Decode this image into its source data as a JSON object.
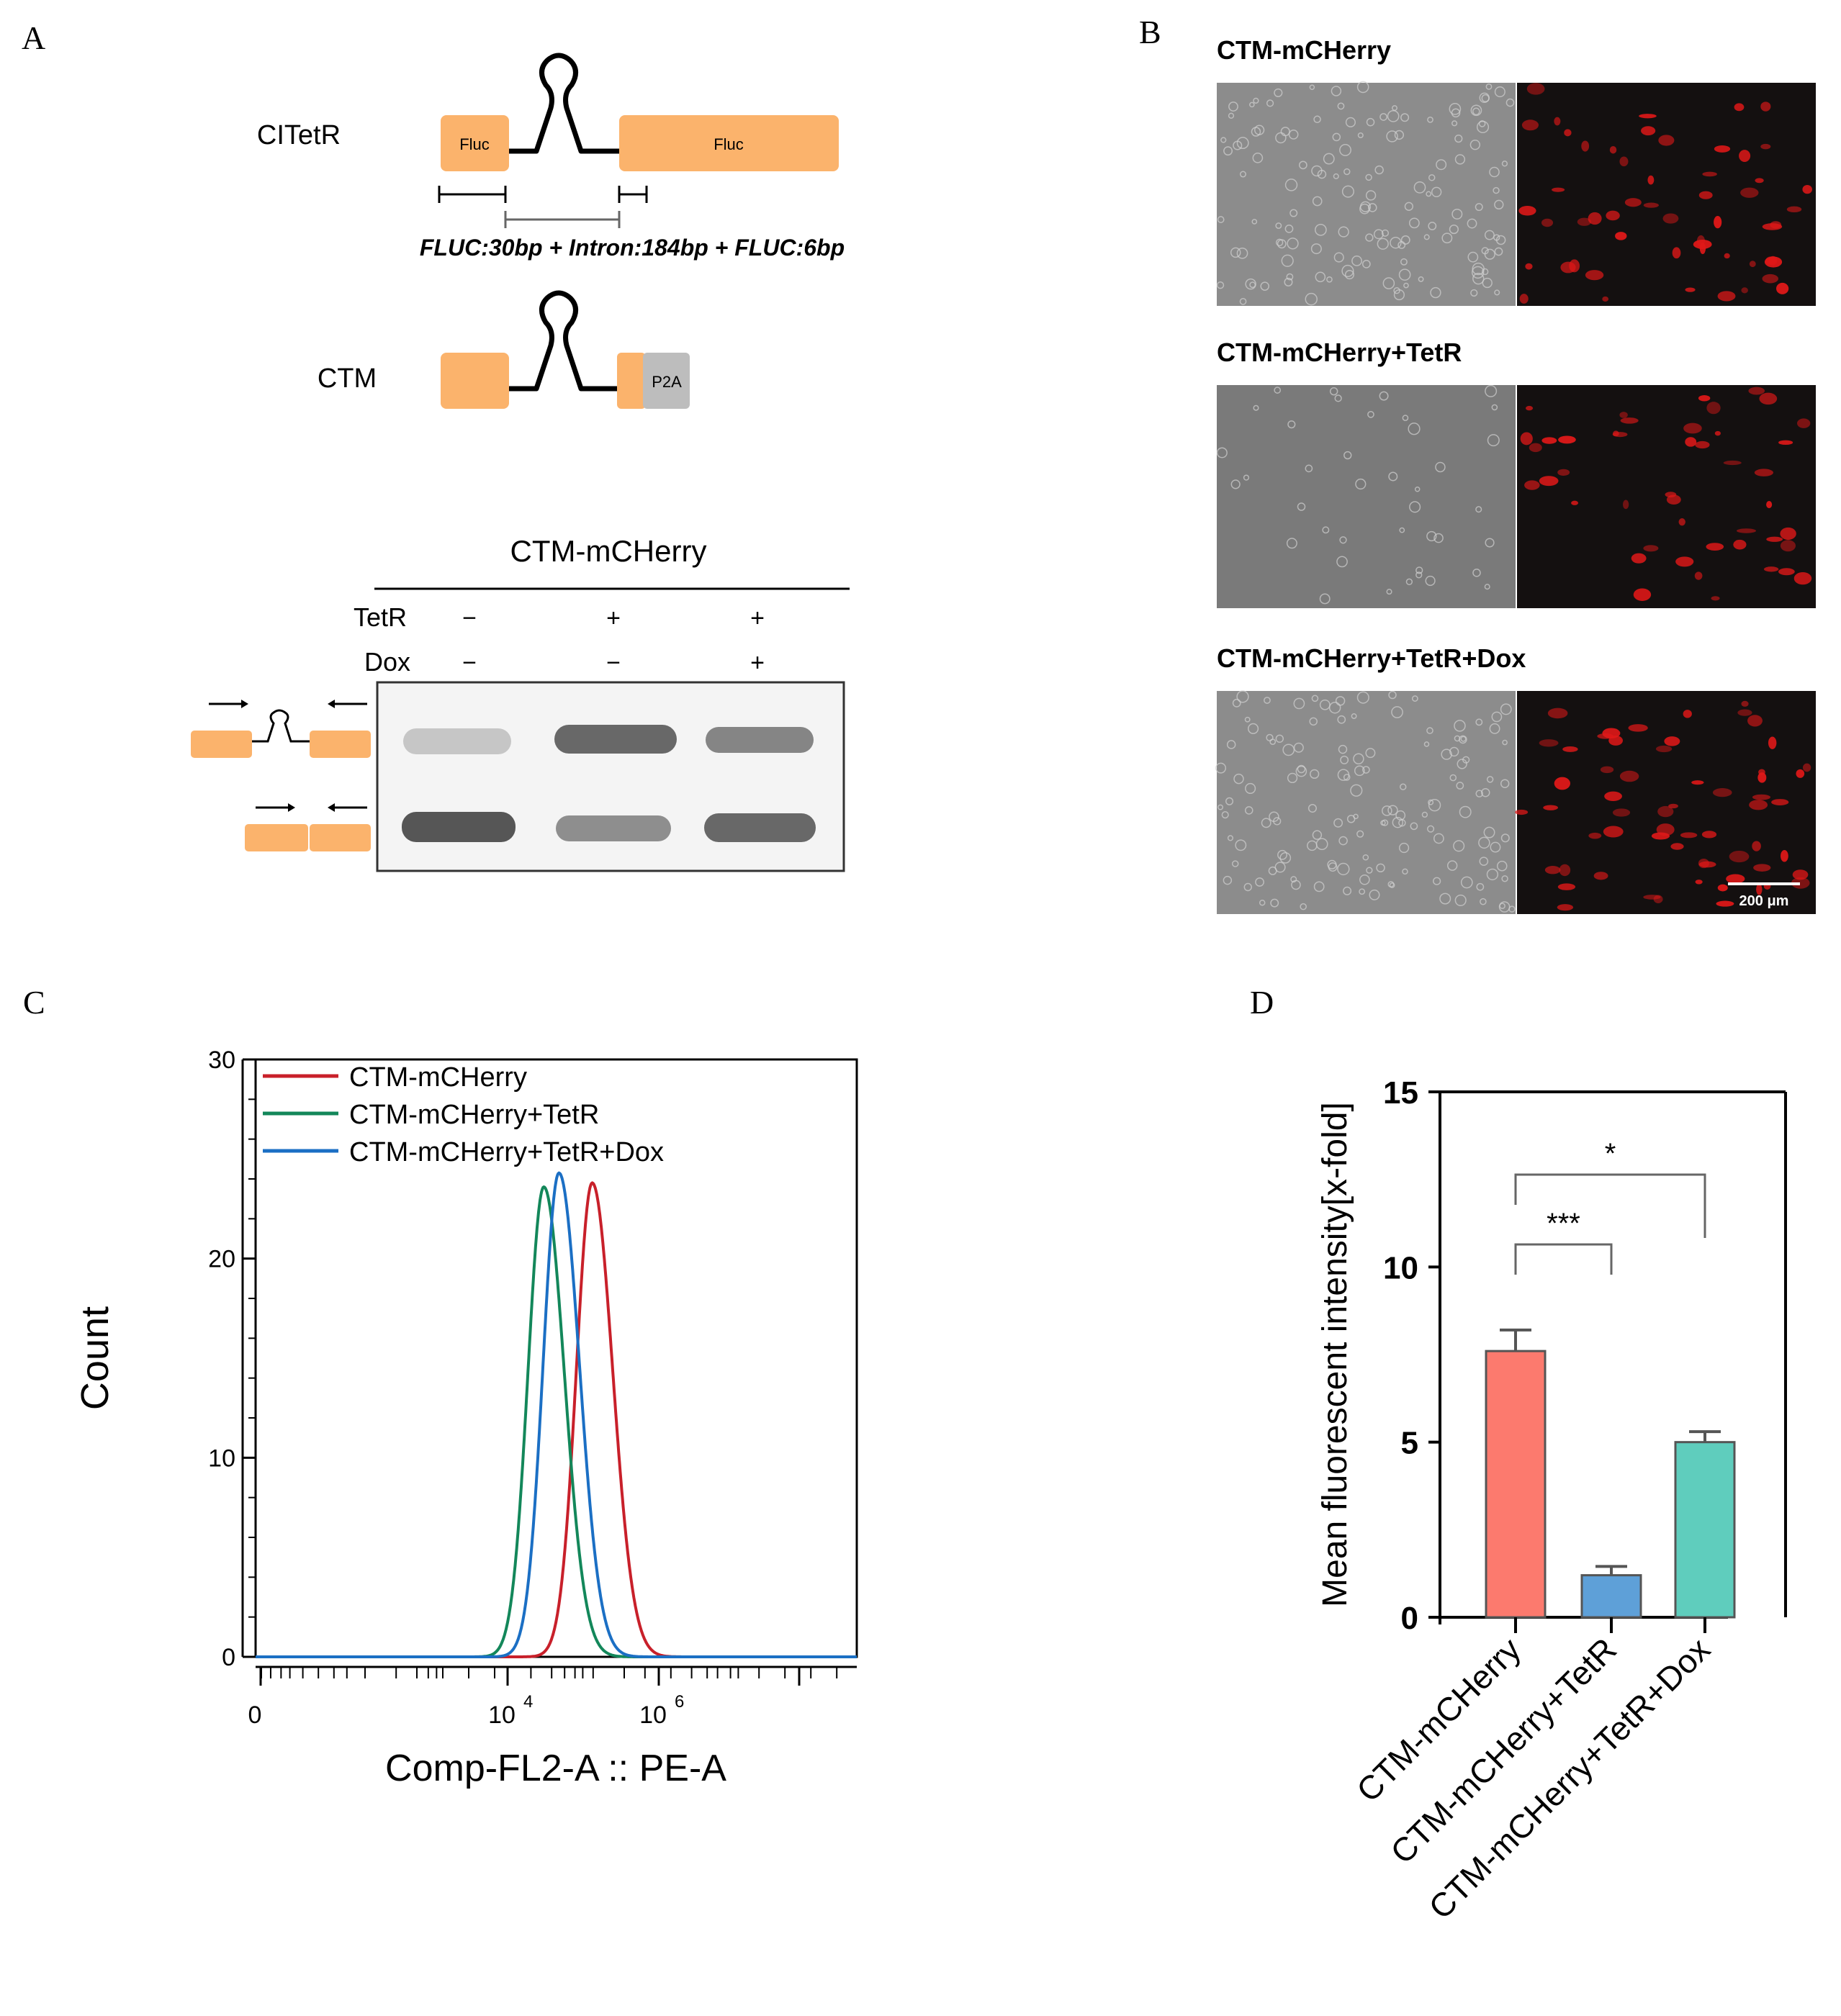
{
  "panels": {
    "A": {
      "letter": "A",
      "constructs": [
        {
          "name": "CITetR",
          "exon1": "Fluc",
          "exon2": "Fluc"
        },
        {
          "name": "CTM",
          "tag": "P2A"
        }
      ],
      "lengths_text": "FLUC:30bp + Intron:184bp + FLUC:6bp",
      "gel": {
        "title": "CTM-mCHerry",
        "rows": [
          {
            "label": "TetR",
            "lanes": [
              "−",
              "+",
              "+"
            ]
          },
          {
            "label": "Dox",
            "lanes": [
              "−",
              "−",
              "+"
            ]
          }
        ]
      }
    },
    "B": {
      "letter": "B",
      "rows": [
        {
          "label": "CTM-mCHerry"
        },
        {
          "label": "CTM-mCHerry+TetR"
        },
        {
          "label": "CTM-mCHerry+TetR+Dox"
        }
      ],
      "scale_bar": "200 μm"
    },
    "C": {
      "letter": "C"
    },
    "D": {
      "letter": "D"
    }
  },
  "chart_data": [
    {
      "panel": "C",
      "type": "line",
      "xlabel": "Comp-FL2-A :: PE-A",
      "ylabel": "Count",
      "ylim": [
        0,
        30
      ],
      "yticks": [
        "0",
        "10",
        "20",
        "30"
      ],
      "xticks": [
        {
          "base": "0",
          "exp": ""
        },
        {
          "base": "10",
          "exp": "4"
        },
        {
          "base": "10",
          "exp": "6"
        }
      ],
      "xscale": "log (biexponential)",
      "legend_position": "top-left",
      "series": [
        {
          "name": "CTM-mCHerry",
          "color": "#c8202a",
          "peak_log10x": 5.12,
          "peak_count": 23.8
        },
        {
          "name": "CTM-mCHerry+TetR",
          "color": "#13875a",
          "peak_log10x": 4.48,
          "peak_count": 23.6
        },
        {
          "name": "CTM-mCHerry+TetR+Dox",
          "color": "#1b6fc4",
          "peak_log10x": 4.68,
          "peak_count": 24.3
        }
      ]
    },
    {
      "panel": "D",
      "type": "bar",
      "ylabel": "Mean fluorescent intensity[x-fold]",
      "ylim": [
        0,
        15
      ],
      "yticks": [
        "0",
        "5",
        "10",
        "15"
      ],
      "categories": [
        "CTM-mCHerry",
        "CTM-mCHerry+TetR",
        "CTM-mCHerry+TetR+Dox"
      ],
      "values": [
        7.6,
        1.2,
        5.0
      ],
      "errors": [
        0.6,
        0.25,
        0.3
      ],
      "colors": [
        "#fc7a6e",
        "#5ea0d8",
        "#5fcdbd"
      ],
      "significance": [
        {
          "from": 0,
          "to": 1,
          "label": "***"
        },
        {
          "from": 0,
          "to": 2,
          "label": "*"
        }
      ]
    }
  ]
}
